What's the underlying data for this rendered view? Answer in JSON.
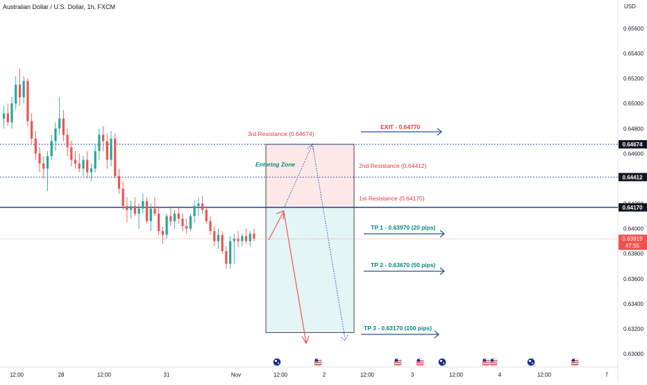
{
  "header": {
    "title": "Australian Dollar / U.S. Dollar, 1h, FXCM",
    "currency": "USD"
  },
  "colors": {
    "up": "#26a69a",
    "down": "#ef5350",
    "resistance_text": "#e53935",
    "tp_text": "#00897b",
    "arrow_blue": "#1e4fa3",
    "dotted_blue": "#1e40af",
    "solid_line": "#0d2f84",
    "zone_red": "#fde8e8",
    "zone_green": "#e3f5f5",
    "axis_text": "#131722",
    "price_tag": "#ef5350"
  },
  "chart_data": {
    "type": "candlestick",
    "y_axis": {
      "ticks": [
        "0.65600",
        "0.65400",
        "0.65200",
        "0.65000",
        "0.64800",
        "0.64600",
        "0.64400",
        "0.64200",
        "0.64000",
        "0.63800",
        "0.63600",
        "0.63400",
        "0.63200",
        "0.63000"
      ],
      "ylim": [
        0.6296,
        0.6574
      ]
    },
    "x_axis": {
      "ticks": [
        "12:00",
        "28",
        "12:00",
        "31",
        "Nov",
        "12:00",
        "2",
        "12:00",
        "3",
        "12:00",
        "4",
        "12:00",
        "7"
      ]
    },
    "candles": [
      {
        "o": 0.6488,
        "h": 0.6498,
        "l": 0.648,
        "c": 0.6492
      },
      {
        "o": 0.6492,
        "h": 0.65,
        "l": 0.6482,
        "c": 0.6485
      },
      {
        "o": 0.6485,
        "h": 0.6505,
        "l": 0.648,
        "c": 0.65
      },
      {
        "o": 0.65,
        "h": 0.6522,
        "l": 0.6495,
        "c": 0.6515
      },
      {
        "o": 0.6515,
        "h": 0.6528,
        "l": 0.6498,
        "c": 0.6505
      },
      {
        "o": 0.6505,
        "h": 0.6522,
        "l": 0.65,
        "c": 0.6518
      },
      {
        "o": 0.6518,
        "h": 0.652,
        "l": 0.6482,
        "c": 0.6486
      },
      {
        "o": 0.6486,
        "h": 0.6492,
        "l": 0.6468,
        "c": 0.6472
      },
      {
        "o": 0.6472,
        "h": 0.6478,
        "l": 0.6455,
        "c": 0.646
      },
      {
        "o": 0.646,
        "h": 0.6465,
        "l": 0.6445,
        "c": 0.6452
      },
      {
        "o": 0.6452,
        "h": 0.6458,
        "l": 0.644,
        "c": 0.6448
      },
      {
        "o": 0.6448,
        "h": 0.6462,
        "l": 0.643,
        "c": 0.6458
      },
      {
        "o": 0.6458,
        "h": 0.6475,
        "l": 0.6455,
        "c": 0.647
      },
      {
        "o": 0.647,
        "h": 0.6485,
        "l": 0.6462,
        "c": 0.648
      },
      {
        "o": 0.648,
        "h": 0.6505,
        "l": 0.6475,
        "c": 0.6488
      },
      {
        "o": 0.6488,
        "h": 0.6495,
        "l": 0.647,
        "c": 0.6475
      },
      {
        "o": 0.6475,
        "h": 0.648,
        "l": 0.6458,
        "c": 0.6465
      },
      {
        "o": 0.6465,
        "h": 0.647,
        "l": 0.645,
        "c": 0.6455
      },
      {
        "o": 0.6455,
        "h": 0.6462,
        "l": 0.6448,
        "c": 0.6452
      },
      {
        "o": 0.6452,
        "h": 0.646,
        "l": 0.6445,
        "c": 0.6448
      },
      {
        "o": 0.6448,
        "h": 0.6458,
        "l": 0.6442,
        "c": 0.6455
      },
      {
        "o": 0.6455,
        "h": 0.6462,
        "l": 0.644,
        "c": 0.6445
      },
      {
        "o": 0.6445,
        "h": 0.6452,
        "l": 0.6438,
        "c": 0.6448
      },
      {
        "o": 0.6448,
        "h": 0.6468,
        "l": 0.6445,
        "c": 0.6462
      },
      {
        "o": 0.6462,
        "h": 0.648,
        "l": 0.6455,
        "c": 0.6475
      },
      {
        "o": 0.6475,
        "h": 0.6482,
        "l": 0.6462,
        "c": 0.647
      },
      {
        "o": 0.647,
        "h": 0.6476,
        "l": 0.6448,
        "c": 0.6455
      },
      {
        "o": 0.6455,
        "h": 0.6478,
        "l": 0.645,
        "c": 0.6472
      },
      {
        "o": 0.6472,
        "h": 0.6476,
        "l": 0.644,
        "c": 0.6442
      },
      {
        "o": 0.6442,
        "h": 0.6448,
        "l": 0.6428,
        "c": 0.6432
      },
      {
        "o": 0.6432,
        "h": 0.6438,
        "l": 0.6415,
        "c": 0.6418
      },
      {
        "o": 0.6418,
        "h": 0.6425,
        "l": 0.6405,
        "c": 0.6415
      },
      {
        "o": 0.6415,
        "h": 0.6422,
        "l": 0.6408,
        "c": 0.6418
      },
      {
        "o": 0.6418,
        "h": 0.6425,
        "l": 0.641,
        "c": 0.6412
      },
      {
        "o": 0.6412,
        "h": 0.642,
        "l": 0.64,
        "c": 0.6416
      },
      {
        "o": 0.6416,
        "h": 0.6428,
        "l": 0.6412,
        "c": 0.6422
      },
      {
        "o": 0.6422,
        "h": 0.6425,
        "l": 0.6404,
        "c": 0.6406
      },
      {
        "o": 0.6406,
        "h": 0.642,
        "l": 0.6398,
        "c": 0.6416
      },
      {
        "o": 0.6416,
        "h": 0.6425,
        "l": 0.641,
        "c": 0.6412
      },
      {
        "o": 0.6412,
        "h": 0.6418,
        "l": 0.6395,
        "c": 0.6398
      },
      {
        "o": 0.6398,
        "h": 0.6402,
        "l": 0.6388,
        "c": 0.6395
      },
      {
        "o": 0.6395,
        "h": 0.6412,
        "l": 0.6392,
        "c": 0.641
      },
      {
        "o": 0.641,
        "h": 0.6418,
        "l": 0.6402,
        "c": 0.6406
      },
      {
        "o": 0.6406,
        "h": 0.6415,
        "l": 0.64,
        "c": 0.6412
      },
      {
        "o": 0.6412,
        "h": 0.6418,
        "l": 0.6404,
        "c": 0.6408
      },
      {
        "o": 0.6408,
        "h": 0.6412,
        "l": 0.6398,
        "c": 0.6402
      },
      {
        "o": 0.6402,
        "h": 0.6408,
        "l": 0.6396,
        "c": 0.64
      },
      {
        "o": 0.64,
        "h": 0.6412,
        "l": 0.6398,
        "c": 0.641
      },
      {
        "o": 0.641,
        "h": 0.6422,
        "l": 0.6405,
        "c": 0.6418
      },
      {
        "o": 0.6418,
        "h": 0.6425,
        "l": 0.641,
        "c": 0.642
      },
      {
        "o": 0.642,
        "h": 0.6426,
        "l": 0.6412,
        "c": 0.6415
      },
      {
        "o": 0.6415,
        "h": 0.6418,
        "l": 0.6404,
        "c": 0.6406
      },
      {
        "o": 0.6406,
        "h": 0.641,
        "l": 0.6395,
        "c": 0.6398
      },
      {
        "o": 0.6398,
        "h": 0.6402,
        "l": 0.6386,
        "c": 0.639
      },
      {
        "o": 0.639,
        "h": 0.64,
        "l": 0.6384,
        "c": 0.6395
      },
      {
        "o": 0.6395,
        "h": 0.6398,
        "l": 0.638,
        "c": 0.6382
      },
      {
        "o": 0.6382,
        "h": 0.6386,
        "l": 0.6368,
        "c": 0.6372
      },
      {
        "o": 0.6372,
        "h": 0.6394,
        "l": 0.6368,
        "c": 0.639
      },
      {
        "o": 0.639,
        "h": 0.6396,
        "l": 0.6372,
        "c": 0.6392
      },
      {
        "o": 0.6392,
        "h": 0.6398,
        "l": 0.6385,
        "c": 0.639
      },
      {
        "o": 0.639,
        "h": 0.6396,
        "l": 0.6386,
        "c": 0.6394
      },
      {
        "o": 0.6394,
        "h": 0.64,
        "l": 0.6388,
        "c": 0.639
      },
      {
        "o": 0.639,
        "h": 0.6398,
        "l": 0.6386,
        "c": 0.6396
      },
      {
        "o": 0.6396,
        "h": 0.64,
        "l": 0.639,
        "c": 0.6392
      }
    ],
    "levels": [
      {
        "price": 0.64674,
        "style": "dotted",
        "tag": "0.64674"
      },
      {
        "price": 0.64412,
        "style": "dotted",
        "tag": "0.64412"
      },
      {
        "price": 0.6417,
        "style": "solid",
        "tag": "0.64170"
      }
    ],
    "current_price": {
      "price": 0.63919,
      "tag": "0.63919",
      "countdown": "47:55"
    },
    "annotations": {
      "r3": "3rd Resistance (0.64674)",
      "r2": "2nd Resistance (0.64412)",
      "r1": "1st Resistance (0.64170)",
      "entry": "Entering Zone",
      "exit": "EXIT - 0.64770",
      "tp1": "TP 1 - 0.63970 (20 pips)",
      "tp2": "TP 2 - 0.63670 (50 pips)",
      "tp3": "TP 3 - 0.63170 (100 pips)"
    },
    "trade_box": {
      "top": 0.64674,
      "entry": 0.6417,
      "bottom": 0.6317
    },
    "event_flags": [
      "au",
      "us",
      "us",
      "us",
      "au",
      "us",
      "us",
      "au",
      "us"
    ]
  }
}
